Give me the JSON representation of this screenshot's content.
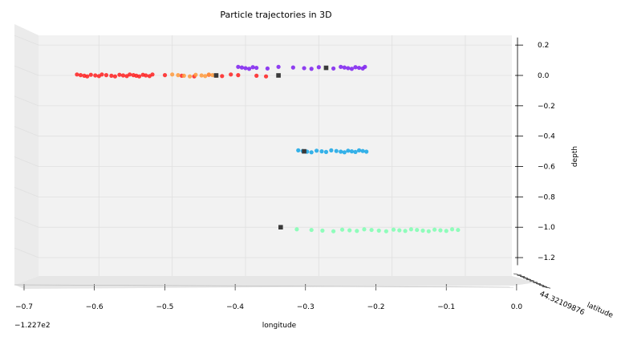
{
  "chart_data": {
    "type": "scatter",
    "title": "Particle trajectories in 3D",
    "xlabel": "longitude",
    "ylabel": "latitude",
    "zlabel": "depth",
    "x_offset_label": "−1.227e2",
    "xlim": [
      -0.72,
      0.0
    ],
    "zlim": [
      -1.25,
      0.25
    ],
    "x_ticks": [
      -0.7,
      -0.6,
      -0.5,
      -0.4,
      -0.3,
      -0.2,
      -0.1,
      0.0
    ],
    "x_tick_labels": [
      "−0.7",
      "−0.6",
      "−0.5",
      "−0.4",
      "−0.3",
      "−0.2",
      "−0.1",
      "0.0"
    ],
    "z_ticks": [
      0.2,
      0.0,
      -0.2,
      -0.4,
      -0.6,
      -0.8,
      -1.0,
      -1.2
    ],
    "z_tick_labels": [
      "0.2",
      "0.0",
      "−0.2",
      "−0.4",
      "−0.6",
      "−0.8",
      "−1.0",
      "−1.2"
    ],
    "y_tick_labels_text": "44.32109876",
    "grid": true,
    "colors": {
      "red": "#ff2020",
      "orange": "#ff9a3c",
      "purple": "#7d1ff0",
      "blue": "#14a6e6",
      "green": "#7effb2",
      "marker": "#3a3a3a"
    },
    "series": [
      {
        "color": "#ff2020",
        "depth": 0.0,
        "x": [
          -0.63,
          -0.625,
          -0.62,
          -0.616,
          -0.611,
          -0.605,
          -0.6,
          -0.596,
          -0.59,
          -0.583,
          -0.578,
          -0.572,
          -0.567,
          -0.562,
          -0.558,
          -0.553,
          -0.549,
          -0.545,
          -0.54,
          -0.536,
          -0.531,
          -0.527,
          -0.51,
          -0.487,
          -0.47,
          -0.45,
          -0.44,
          -0.432,
          -0.42,
          -0.41,
          -0.385,
          -0.372
        ]
      },
      {
        "color": "#ff9a3c",
        "depth": 0.0,
        "x": [
          -0.5,
          -0.492,
          -0.484,
          -0.476,
          -0.468,
          -0.46,
          -0.455,
          -0.45,
          -0.445,
          -0.44
        ]
      },
      {
        "color": "#7d1ff0",
        "depth": 0.05,
        "x": [
          -0.41,
          -0.405,
          -0.4,
          -0.395,
          -0.39,
          -0.385,
          -0.37,
          -0.355,
          -0.335,
          -0.32,
          -0.31,
          -0.3,
          -0.29,
          -0.28,
          -0.27,
          -0.265,
          -0.26,
          -0.255,
          -0.25,
          -0.245,
          -0.24,
          -0.237
        ]
      },
      {
        "color": "#14a6e6",
        "depth": -0.5,
        "x": [
          -0.328,
          -0.322,
          -0.316,
          -0.31,
          -0.303,
          -0.296,
          -0.29,
          -0.283,
          -0.276,
          -0.27,
          -0.265,
          -0.26,
          -0.255,
          -0.25,
          -0.245,
          -0.24,
          -0.235
        ]
      },
      {
        "color": "#7effb2",
        "depth": -1.02,
        "x": [
          -0.33,
          -0.31,
          -0.295,
          -0.28,
          -0.268,
          -0.258,
          -0.248,
          -0.238,
          -0.228,
          -0.218,
          -0.208,
          -0.198,
          -0.19,
          -0.182,
          -0.174,
          -0.166,
          -0.158,
          -0.15,
          -0.142,
          -0.134,
          -0.126,
          -0.118,
          -0.11
        ]
      }
    ],
    "start_markers": [
      {
        "x": -0.44,
        "depth": 0.0
      },
      {
        "x": -0.355,
        "depth": 0.0
      },
      {
        "x": -0.29,
        "depth": 0.05
      },
      {
        "x": -0.32,
        "depth": -0.5
      },
      {
        "x": -0.352,
        "depth": -1.0
      }
    ]
  }
}
